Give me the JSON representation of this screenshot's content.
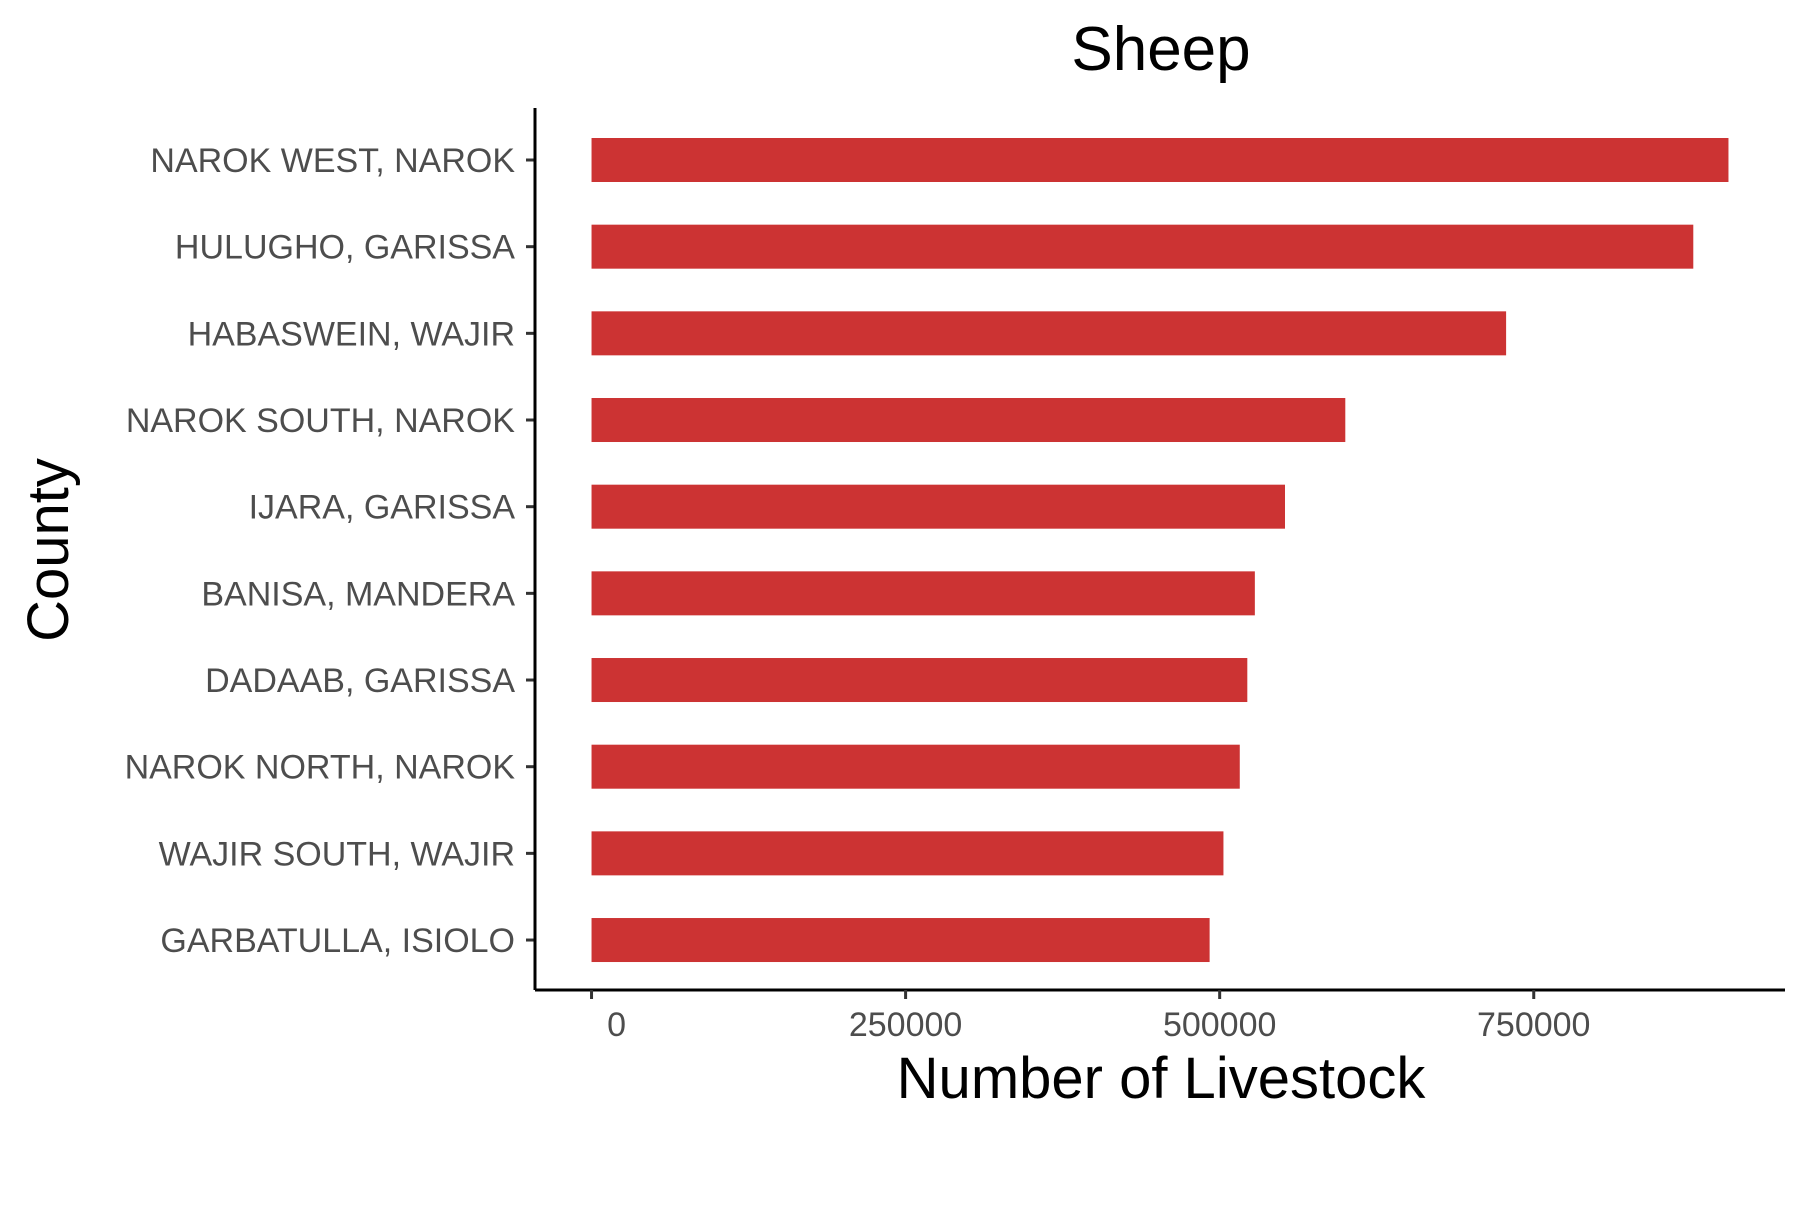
{
  "chart_data": {
    "type": "bar",
    "orientation": "horizontal",
    "title": "Sheep",
    "xlabel": "Number of Livestock",
    "ylabel": "County",
    "categories": [
      "NAROK WEST, NAROK",
      "HULUGHO, GARISSA",
      "HABASWEIN, WAJIR",
      "NAROK SOUTH, NAROK",
      "IJARA, GARISSA",
      "BANISA, MANDERA",
      "DADAAB, GARISSA",
      "NAROK NORTH, NAROK",
      "WAJIR SOUTH, WAJIR",
      "GARBATULLA, ISIOLO"
    ],
    "values": [
      905000,
      877000,
      728000,
      600000,
      552000,
      528000,
      522000,
      516000,
      503000,
      492000
    ],
    "xlim": [
      -45000,
      950000
    ],
    "xticks": [
      0,
      250000,
      500000,
      750000
    ],
    "xtick_labels": [
      "0",
      "250000",
      "500000",
      "750000"
    ],
    "bar_color": "#cc3333",
    "grid": false,
    "legend": "none"
  }
}
